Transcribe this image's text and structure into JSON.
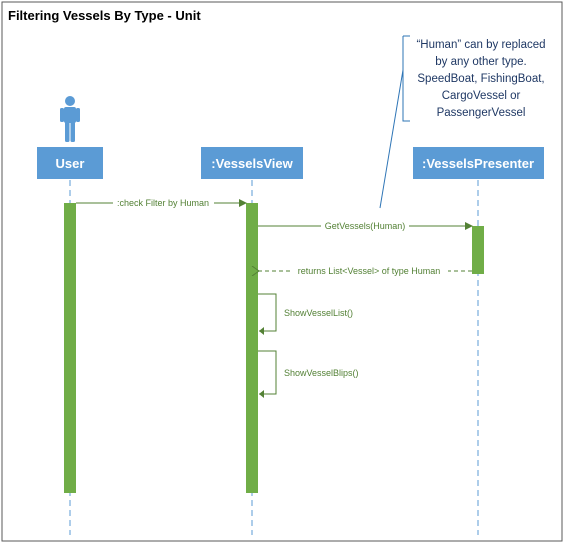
{
  "diagram": {
    "title": "Filtering Vessels By Type - Unit",
    "colors": {
      "lifeline_box": "#5b9bd5",
      "activation": "#70ad47",
      "message": "#538135",
      "lifeline_dash": "#5b9bd5",
      "actor": "#5b9bd5"
    },
    "lifelines": [
      {
        "id": "user",
        "label": "User"
      },
      {
        "id": "view",
        "label": ":VesselsView"
      },
      {
        "id": "presenter",
        "label": ":VesselsPresenter"
      }
    ],
    "messages": [
      {
        "label": ":check Filter by Human",
        "from": "user",
        "to": "view"
      },
      {
        "label": "GetVessels(Human)",
        "from": "view",
        "to": "presenter"
      },
      {
        "label": "returns List<Vessel> of type Human",
        "from": "presenter",
        "to": "view"
      },
      {
        "label": "ShowVesselList()",
        "from": "view",
        "to": "view"
      },
      {
        "label": "ShowVesselBlips()",
        "from": "view",
        "to": "view"
      }
    ],
    "note": {
      "lines": [
        "“Human” can by replaced",
        "by any other type.",
        "SpeedBoat, FishingBoat,",
        "CargoVessel or",
        "PassengerVessel"
      ]
    }
  }
}
